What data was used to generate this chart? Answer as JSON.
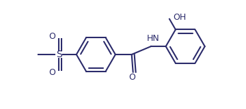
{
  "bg_color": "#ffffff",
  "line_color": "#2b2b6b",
  "line_width": 1.5,
  "font_size": 8.5,
  "figsize": [
    3.6,
    1.6
  ],
  "dpi": 100,
  "xlim": [
    0,
    9.0
  ],
  "ylim": [
    0,
    4.0
  ]
}
